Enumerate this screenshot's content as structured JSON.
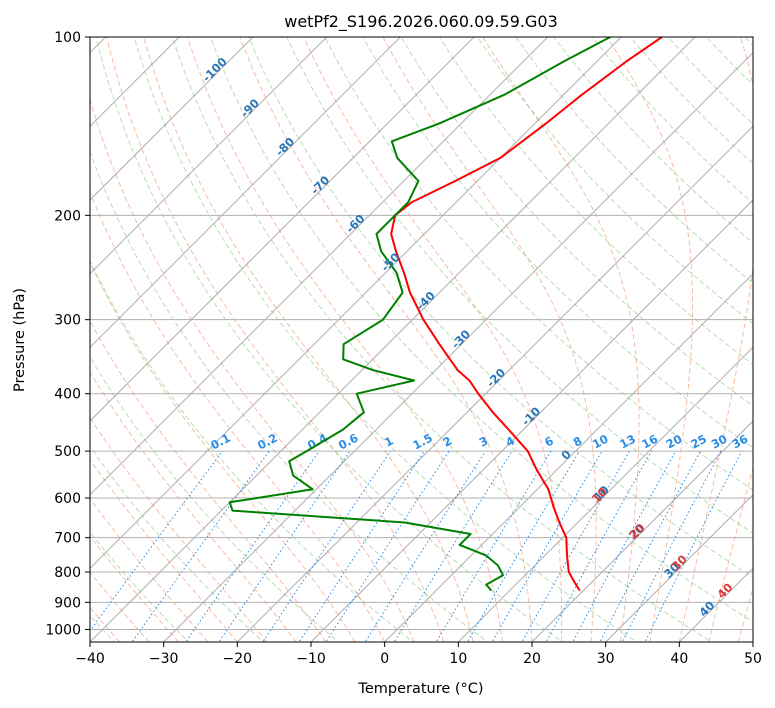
{
  "chart_data": {
    "type": "line",
    "title": "wetPf2_S196.2026.060.09.59.G03",
    "xlabel": "Temperature (°C)",
    "ylabel": "Pressure (hPa)",
    "xlim": [
      -40,
      50
    ],
    "ylim": [
      1050,
      100
    ],
    "y_scale": "log",
    "grid": true,
    "x_ticks": [
      -40,
      -30,
      -20,
      -10,
      0,
      10,
      20,
      30,
      40,
      50
    ],
    "y_ticks": [
      100,
      200,
      300,
      400,
      500,
      600,
      700,
      800,
      900,
      1000
    ],
    "x_tick_labels": [
      "−40",
      "−30",
      "−20",
      "−10",
      "0",
      "10",
      "20",
      "30",
      "40",
      "50"
    ],
    "y_tick_labels": [
      "100",
      "200",
      "300",
      "400",
      "500",
      "600",
      "700",
      "800",
      "900",
      "1000"
    ],
    "series": [
      {
        "color": "#ff0000",
        "pressure": [
          100,
          110,
          125,
          140,
          160,
          175,
          190,
          200,
          215,
          230,
          250,
          270,
          300,
          330,
          350,
          365,
          380,
          400,
          430,
          460,
          500,
          540,
          580,
          620,
          660,
          700,
          750,
          800,
          830,
          860
        ],
        "temperature": [
          -44.5,
          -46,
          -47.5,
          -48.5,
          -50,
          -53,
          -56,
          -56.5,
          -54.5,
          -51.5,
          -47.5,
          -44,
          -38.5,
          -33,
          -29.5,
          -27,
          -24,
          -21,
          -16.5,
          -12,
          -6.5,
          -2.5,
          1.5,
          4.5,
          7.5,
          10.5,
          13,
          15.5,
          17.5,
          19.5
        ]
      },
      {
        "color": "#008000",
        "pressure": [
          100,
          110,
          125,
          140,
          150,
          160,
          175,
          190,
          200,
          215,
          230,
          250,
          270,
          300,
          330,
          350,
          365,
          380,
          400,
          430,
          460,
          500,
          520,
          550,
          580,
          610,
          630,
          660,
          690,
          720,
          750,
          780,
          810,
          840,
          860
        ],
        "temperature": [
          -51.5,
          -54.5,
          -58,
          -63,
          -67,
          -64,
          -58,
          -56.5,
          -56.5,
          -56.5,
          -53.5,
          -48.5,
          -45,
          -44,
          -46,
          -44,
          -38.5,
          -31.5,
          -37.5,
          -34,
          -34.5,
          -36.5,
          -37.5,
          -35,
          -30.5,
          -40,
          -38.5,
          -13.5,
          -3,
          -3,
          2,
          5,
          7,
          6,
          7.5
        ]
      }
    ],
    "dry_adiabat_labels": [
      "-100",
      "-90",
      "-80",
      "-70",
      "-60",
      "-50",
      "-40",
      "-30",
      "-20",
      "-10",
      "0",
      "10",
      "20",
      "30",
      "40"
    ],
    "moist_adiabat_labels": [
      "10",
      "20",
      "30",
      "40"
    ],
    "mixing_ratio_labels": [
      "0.1",
      "0.2",
      "0.4",
      "0.6",
      "1",
      "1.5",
      "2",
      "3",
      "4",
      "6",
      "8",
      "10",
      "13",
      "16",
      "20",
      "25",
      "30",
      "36"
    ]
  }
}
